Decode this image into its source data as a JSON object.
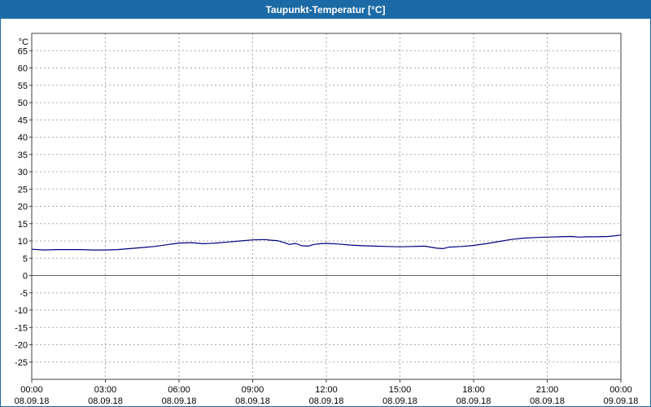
{
  "window": {
    "title": "Taupunkt-Temperatur [°C]"
  },
  "colors": {
    "titlebar": "#1b6aa5",
    "line": "#000080",
    "grid": "#a8a8a8",
    "zero_line": "#606060",
    "frame": "#404040",
    "background": "#ffffff",
    "text": "#000000"
  },
  "chart_data": {
    "type": "line",
    "title": "Taupunkt-Temperatur [°C]",
    "unit_label": "°C",
    "grid": true,
    "legend": "none",
    "ylim": [
      -30,
      70
    ],
    "ytick_min": -25,
    "ytick_max": 65,
    "ytick_step": 5,
    "xlim_hours": [
      0,
      24
    ],
    "x_tick_hours": [
      0,
      3,
      6,
      9,
      12,
      15,
      18,
      21,
      24
    ],
    "x_tick_labels": [
      "00:00",
      "03:00",
      "06:00",
      "09:00",
      "12:00",
      "15:00",
      "18:00",
      "21:00",
      "00:00"
    ],
    "x_date_labels": [
      "08.09.18",
      "08.09.18",
      "08.09.18",
      "08.09.18",
      "08.09.18",
      "08.09.18",
      "08.09.18",
      "08.09.18",
      "09.09.18"
    ],
    "series": [
      {
        "name": "Taupunkt-Temperatur",
        "color": "#000080",
        "points": [
          [
            0,
            7.6
          ],
          [
            0.5,
            7.4
          ],
          [
            1,
            7.5
          ],
          [
            1.5,
            7.5
          ],
          [
            2,
            7.5
          ],
          [
            2.5,
            7.4
          ],
          [
            3,
            7.4
          ],
          [
            3.5,
            7.5
          ],
          [
            4,
            7.8
          ],
          [
            4.5,
            8.1
          ],
          [
            5,
            8.4
          ],
          [
            5.5,
            8.9
          ],
          [
            6,
            9.4
          ],
          [
            6.5,
            9.5
          ],
          [
            7,
            9.2
          ],
          [
            7.5,
            9.4
          ],
          [
            8,
            9.7
          ],
          [
            8.5,
            10.0
          ],
          [
            9,
            10.3
          ],
          [
            9.5,
            10.4
          ],
          [
            9.75,
            10.2
          ],
          [
            10,
            10.1
          ],
          [
            10.25,
            9.6
          ],
          [
            10.5,
            9.0
          ],
          [
            10.75,
            9.3
          ],
          [
            11,
            8.6
          ],
          [
            11.25,
            8.5
          ],
          [
            11.5,
            9.0
          ],
          [
            11.75,
            9.2
          ],
          [
            12,
            9.3
          ],
          [
            12.5,
            9.1
          ],
          [
            13,
            8.8
          ],
          [
            13.5,
            8.6
          ],
          [
            14,
            8.5
          ],
          [
            14.5,
            8.4
          ],
          [
            15,
            8.3
          ],
          [
            15.5,
            8.4
          ],
          [
            16,
            8.5
          ],
          [
            16.25,
            8.2
          ],
          [
            16.5,
            7.9
          ],
          [
            16.75,
            7.8
          ],
          [
            17,
            8.2
          ],
          [
            17.5,
            8.4
          ],
          [
            18,
            8.7
          ],
          [
            18.5,
            9.2
          ],
          [
            19,
            9.8
          ],
          [
            19.5,
            10.4
          ],
          [
            20,
            10.8
          ],
          [
            20.5,
            11.0
          ],
          [
            21,
            11.1
          ],
          [
            21.5,
            11.2
          ],
          [
            22,
            11.3
          ],
          [
            22.3,
            11.1
          ],
          [
            22.6,
            11.2
          ],
          [
            23,
            11.2
          ],
          [
            23.5,
            11.3
          ],
          [
            24,
            11.7
          ]
        ]
      }
    ]
  }
}
